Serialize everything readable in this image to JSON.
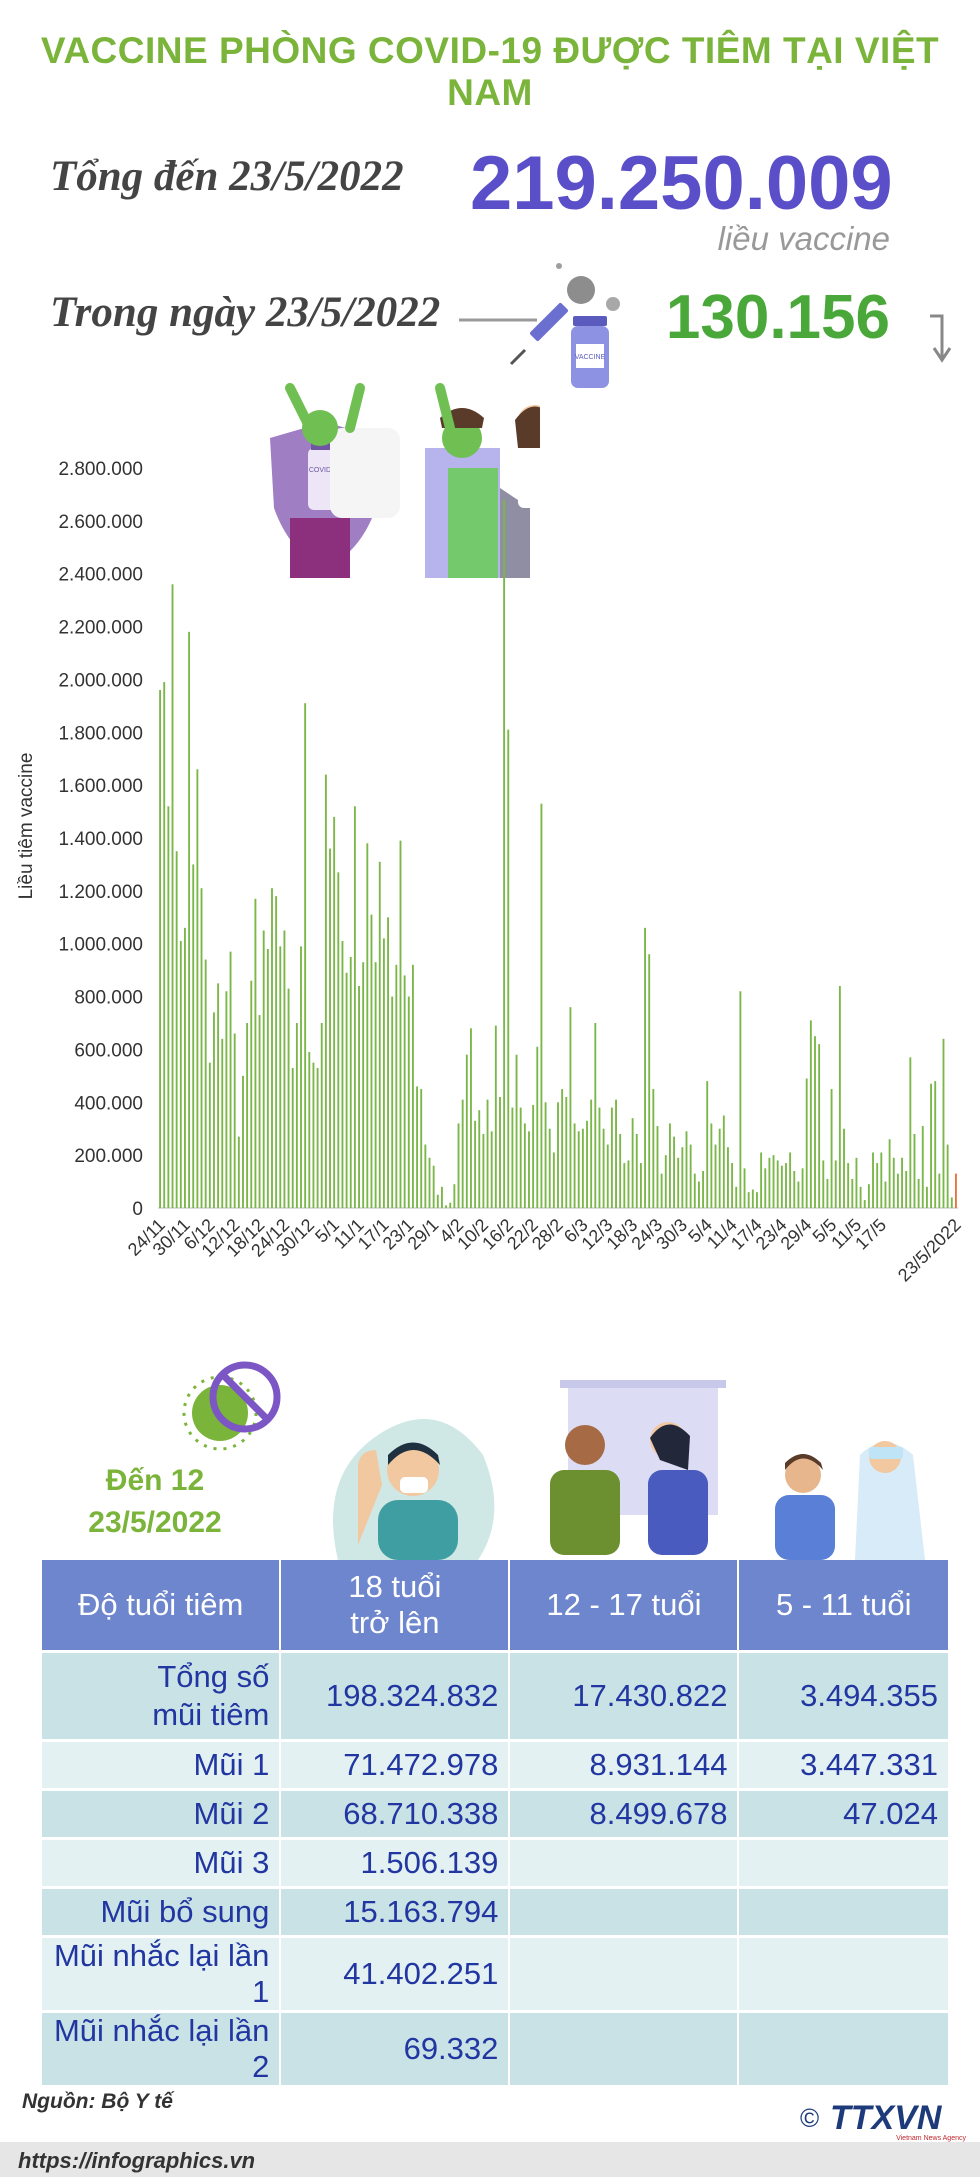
{
  "title": "VACCINE PHÒNG COVID-19 ĐƯỢC TIÊM TẠI VIỆT NAM",
  "summary": {
    "total_label": "Tổng đến 23/5/2022",
    "total_value": "219.250.009",
    "total_unit": "liều vaccine",
    "day_label": "Trong ngày 23/5/2022",
    "day_value": "130.156"
  },
  "vial_label": "VACCINE",
  "vial_big_label": "COVID-19",
  "chart_data": {
    "type": "bar",
    "ylabel": "Liều tiêm vaccine",
    "ylim": [
      0,
      2800000
    ],
    "yticks": [
      0,
      200000,
      400000,
      600000,
      800000,
      1000000,
      1200000,
      1400000,
      1600000,
      1800000,
      2000000,
      2200000,
      2400000,
      2600000,
      2800000
    ],
    "ytick_labels": [
      "0",
      "200.000",
      "400.000",
      "600.000",
      "800.000",
      "1.000.000",
      "1.200.000",
      "1.400.000",
      "1.600.000",
      "1.800.000",
      "2.000.000",
      "2.200.000",
      "2.400.000",
      "2.600.000",
      "2.800.000"
    ],
    "xtick_labels": [
      "24/11",
      "30/11",
      "6/12",
      "12/12",
      "18/12",
      "24/12",
      "30/12",
      "5/1",
      "11/1",
      "17/1",
      "23/1",
      "29/1",
      "4/2",
      "10/2",
      "16/2",
      "22/2",
      "28/2",
      "6/3",
      "12/3",
      "18/3",
      "24/3",
      "30/3",
      "5/4",
      "11/4",
      "17/4",
      "23/4",
      "29/4",
      "5/5",
      "11/5",
      "17/5",
      "23/5/2022"
    ],
    "x_start": "24/11/2021",
    "x_end": "23/5/2022",
    "values": [
      1960000,
      1990000,
      1520000,
      2360000,
      1350000,
      1010000,
      1060000,
      2180000,
      1300000,
      1660000,
      1210000,
      940000,
      550000,
      740000,
      850000,
      640000,
      820000,
      970000,
      660000,
      270000,
      500000,
      700000,
      860000,
      1170000,
      730000,
      1050000,
      980000,
      1210000,
      1180000,
      990000,
      1050000,
      830000,
      530000,
      700000,
      990000,
      1910000,
      590000,
      550000,
      530000,
      700000,
      1640000,
      1360000,
      1480000,
      1270000,
      1010000,
      890000,
      950000,
      1520000,
      840000,
      930000,
      1380000,
      1110000,
      930000,
      1310000,
      1020000,
      1100000,
      800000,
      920000,
      1390000,
      880000,
      800000,
      920000,
      460000,
      450000,
      240000,
      190000,
      160000,
      50000,
      80000,
      10000,
      20000,
      90000,
      320000,
      410000,
      580000,
      680000,
      330000,
      370000,
      280000,
      410000,
      290000,
      690000,
      420000,
      2680000,
      1810000,
      380000,
      580000,
      380000,
      320000,
      290000,
      390000,
      610000,
      1530000,
      400000,
      300000,
      210000,
      400000,
      450000,
      420000,
      760000,
      320000,
      290000,
      300000,
      330000,
      410000,
      700000,
      380000,
      300000,
      240000,
      380000,
      410000,
      280000,
      170000,
      180000,
      340000,
      280000,
      170000,
      1060000,
      960000,
      450000,
      310000,
      130000,
      200000,
      320000,
      270000,
      190000,
      230000,
      290000,
      240000,
      130000,
      100000,
      140000,
      480000,
      320000,
      240000,
      300000,
      350000,
      230000,
      170000,
      80000,
      820000,
      150000,
      60000,
      70000,
      60000,
      210000,
      150000,
      190000,
      200000,
      180000,
      160000,
      170000,
      210000,
      140000,
      100000,
      150000,
      490000,
      710000,
      650000,
      620000,
      180000,
      110000,
      450000,
      180000,
      840000,
      300000,
      170000,
      110000,
      190000,
      80000,
      30000,
      90000,
      210000,
      170000,
      210000,
      100000,
      260000,
      190000,
      130000,
      190000,
      140000,
      570000,
      280000,
      110000,
      310000,
      80000,
      470000,
      480000,
      130000,
      640000,
      240000,
      40000,
      130156
    ],
    "highlight_last": true,
    "bar_color": "#7ab648",
    "highlight_color": "#e8743b"
  },
  "age_section": {
    "date_line1": "Đến 12",
    "date_line2": "23/5/2022"
  },
  "table": {
    "headers": {
      "label": "Độ tuổi tiêm",
      "adult_line1": "18 tuổi",
      "adult_line2": "trở lên",
      "teen": "12 - 17 tuổi",
      "child": "5 - 11 tuổi"
    },
    "total_row": {
      "label_line1": "Tổng số",
      "label_line2": "mũi tiêm",
      "adult": "198.324.832",
      "teen": "17.430.822",
      "child": "3.494.355"
    },
    "rows": [
      {
        "label": "Mũi 1",
        "adult": "71.472.978",
        "teen": "8.931.144",
        "child": "3.447.331"
      },
      {
        "label": "Mũi 2",
        "adult": "68.710.338",
        "teen": "8.499.678",
        "child": "47.024"
      },
      {
        "label": "Mũi 3",
        "adult": "1.506.139",
        "teen": "",
        "child": ""
      },
      {
        "label": "Mũi bổ sung",
        "adult": "15.163.794",
        "teen": "",
        "child": ""
      },
      {
        "label": "Mũi nhắc lại lần 1",
        "adult": "41.402.251",
        "teen": "",
        "child": ""
      },
      {
        "label": "Mũi nhắc lại lần 2",
        "adult": "69.332",
        "teen": "",
        "child": ""
      }
    ]
  },
  "source": "Nguồn: Bộ Y tế",
  "website": "https://infographics.vn",
  "logo": {
    "copyright": "©",
    "name": "TTXVN",
    "tagline": "Vietnam News Agency"
  },
  "colors": {
    "title_green": "#7bb43a",
    "total_purple": "#5b4fc9",
    "day_green": "#4aa83a",
    "header_blue": "#6d86cd"
  }
}
